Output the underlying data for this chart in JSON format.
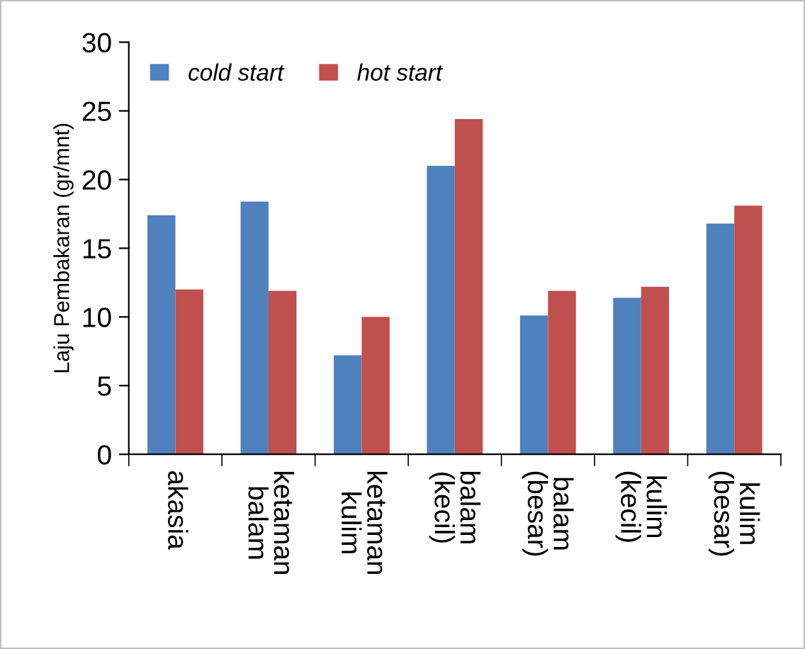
{
  "chart_data": {
    "type": "bar",
    "ylabel": "Laju Pembakaran (gr/mnt)",
    "categories": [
      "akasia",
      "ketaman\nbalam",
      "ketaman\nkulim",
      "balam\n(kecil)",
      "balam\n(besar)",
      "kulim\n(kecil)",
      "kulim\n(besar)"
    ],
    "series": [
      {
        "name": "cold start",
        "color": "#4f81bd",
        "values": [
          17.4,
          18.4,
          7.2,
          21.0,
          10.1,
          11.4,
          16.8
        ]
      },
      {
        "name": "hot start",
        "color": "#c0504d",
        "values": [
          12.0,
          11.9,
          10.0,
          24.4,
          11.9,
          12.2,
          18.1
        ]
      }
    ],
    "ylim": [
      0,
      30
    ],
    "yticks": [
      0,
      5,
      10,
      15,
      20,
      25,
      30
    ],
    "grid": false,
    "legend": "top left"
  }
}
